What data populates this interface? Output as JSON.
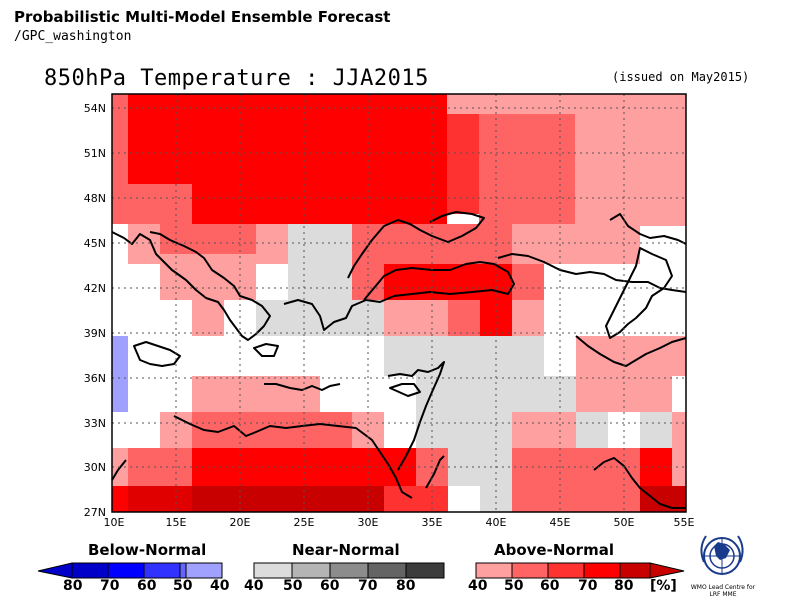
{
  "header": {
    "title": "Probabilistic Multi-Model Ensemble Forecast",
    "subtitle": "/GPC_washington"
  },
  "map": {
    "title": "850hPa Temperature : JJA2015",
    "issued": "(issued on May2015)",
    "lon_labels": [
      "10E",
      "15E",
      "20E",
      "25E",
      "30E",
      "35E",
      "40E",
      "45E",
      "50E",
      "55E"
    ],
    "lat_labels": [
      "54N",
      "51N",
      "48N",
      "45N",
      "42N",
      "39N",
      "36N",
      "33N",
      "30N",
      "27N"
    ]
  },
  "legend": {
    "below": {
      "label": "Below-Normal",
      "values": [
        "80",
        "70",
        "60",
        "50",
        "40"
      ],
      "colors": [
        "#0000c8",
        "#0000ff",
        "#3232ff",
        "#6464ff",
        "#a0a0ff"
      ]
    },
    "near": {
      "label": "Near-Normal",
      "values": [
        "40",
        "50",
        "60",
        "70",
        "80"
      ],
      "colors": [
        "#dcdcdc",
        "#b4b4b4",
        "#8c8c8c",
        "#646464",
        "#3c3c3c"
      ]
    },
    "above": {
      "label": "Above-Normal",
      "values": [
        "40",
        "50",
        "60",
        "70",
        "80"
      ],
      "unit": "[%]",
      "colors": [
        "#ffa0a0",
        "#ff6464",
        "#ff3232",
        "#ff0000",
        "#c80000"
      ]
    }
  },
  "logo": {
    "icon": "wmo-emblem-icon",
    "caption": "WMO Lead Centre for LRF MME"
  }
}
